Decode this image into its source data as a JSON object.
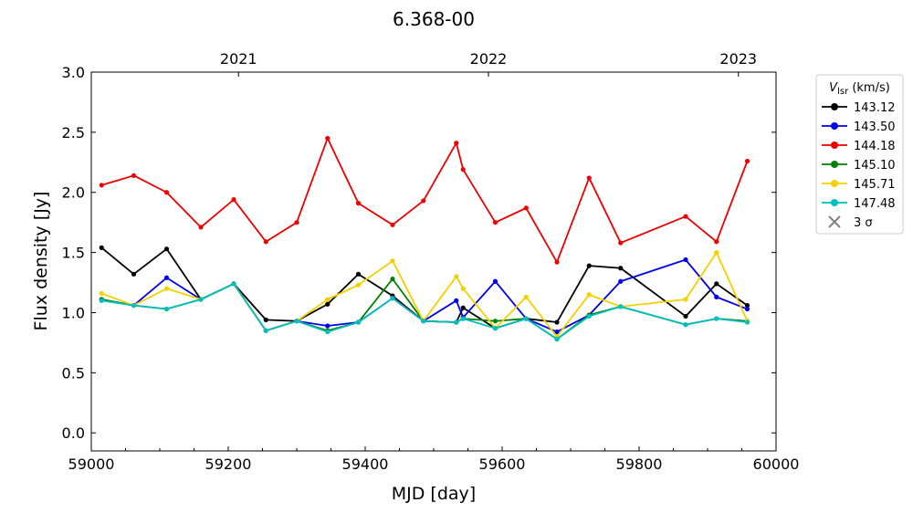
{
  "chart_data": {
    "type": "line",
    "title": "6.368-00",
    "xlabel": "MJD [day]",
    "ylabel": "Flux density [Jy]",
    "xlim": [
      59000,
      60000
    ],
    "ylim": [
      -0.15,
      3.0
    ],
    "xticks": [
      59000,
      59200,
      59400,
      59600,
      59800,
      60000
    ],
    "xtick_labels": [
      "59000",
      "59200",
      "59400",
      "59600",
      "59800",
      "60000"
    ],
    "yticks": [
      0.0,
      0.5,
      1.0,
      1.5,
      2.0,
      2.5,
      3.0
    ],
    "ytick_labels": [
      "0.0",
      "0.5",
      "1.0",
      "1.5",
      "2.0",
      "2.5",
      "3.0"
    ],
    "top_axis": {
      "ticks": [
        59215,
        59580,
        59945
      ],
      "labels": [
        "2021",
        "2022",
        "2023"
      ]
    },
    "legend": {
      "title_main": "V",
      "title_sub": "lsr",
      "title_unit": " (km/s)",
      "placement": "outside-top-right",
      "sigma_label": "3 σ",
      "sigma_color": "#808080"
    },
    "x": [
      59015,
      59062,
      59110,
      59160,
      59208,
      59255,
      59300,
      59345,
      59390,
      59440,
      59485,
      59533,
      59543,
      59590,
      59635,
      59680,
      59727,
      59773,
      59868,
      59913,
      59958
    ],
    "series": [
      {
        "name": "143.12",
        "color": "#000000",
        "values": [
          1.54,
          1.32,
          1.53,
          1.11,
          1.24,
          0.94,
          0.93,
          1.07,
          1.32,
          1.14,
          0.93,
          0.92,
          1.04,
          0.87,
          0.95,
          0.92,
          1.39,
          1.37,
          0.97,
          1.24,
          1.06
        ]
      },
      {
        "name": "143.50",
        "color": "#0000ee",
        "values": [
          1.11,
          1.06,
          1.29,
          1.11,
          1.24,
          0.85,
          0.93,
          0.89,
          0.92,
          1.12,
          0.93,
          1.1,
          0.96,
          1.26,
          0.95,
          0.84,
          0.98,
          1.26,
          1.44,
          1.13,
          1.03
        ]
      },
      {
        "name": "144.18",
        "color": "#ee0000",
        "values": [
          2.06,
          2.14,
          2.0,
          1.71,
          1.94,
          1.59,
          1.75,
          2.45,
          1.91,
          1.73,
          1.93,
          2.41,
          2.19,
          1.75,
          1.87,
          1.42,
          2.12,
          1.58,
          1.8,
          1.59,
          2.26
        ]
      },
      {
        "name": "145.10",
        "color": "#008000",
        "values": [
          1.11,
          1.06,
          1.03,
          1.11,
          1.24,
          0.85,
          0.93,
          0.85,
          0.92,
          1.28,
          0.93,
          0.92,
          0.95,
          0.93,
          0.95,
          0.78,
          0.98,
          1.05,
          0.9,
          0.95,
          0.93
        ]
      },
      {
        "name": "145.71",
        "color": "#f5d000",
        "values": [
          1.16,
          1.06,
          1.2,
          1.11,
          1.24,
          0.85,
          0.93,
          1.11,
          1.23,
          1.43,
          0.93,
          1.3,
          1.2,
          0.87,
          1.13,
          0.8,
          1.15,
          1.05,
          1.11,
          1.5,
          0.93
        ]
      },
      {
        "name": "147.48",
        "color": "#00bfbf",
        "values": [
          1.1,
          1.06,
          1.03,
          1.11,
          1.24,
          0.85,
          0.93,
          0.84,
          0.92,
          1.12,
          0.93,
          0.92,
          0.95,
          0.87,
          0.95,
          0.78,
          0.97,
          1.05,
          0.9,
          0.95,
          0.92
        ]
      }
    ]
  }
}
